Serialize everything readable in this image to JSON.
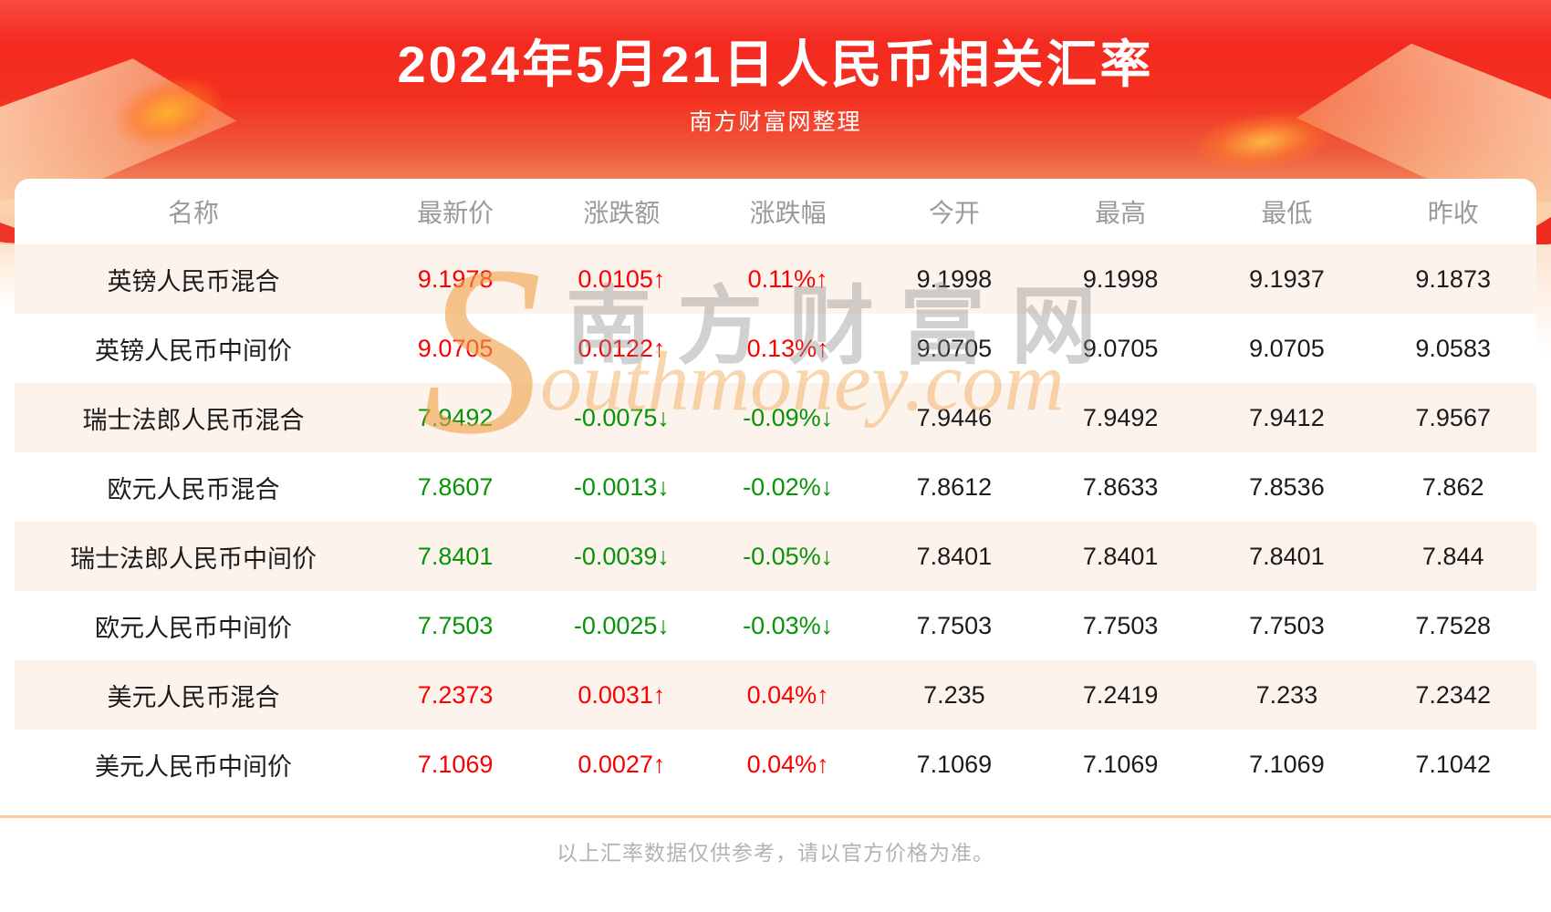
{
  "page": {
    "title": "2024年5月21日人民币相关汇率",
    "subtitle": "南方财富网整理",
    "disclaimer": "以上汇率数据仅供参考，请以官方价格为准。"
  },
  "watermark": {
    "initial": "S",
    "cn": "南方财富网",
    "rest": "outhmoney.com"
  },
  "colors": {
    "up": "#fa0000",
    "down": "#079407",
    "banner_red": "#f4291f",
    "banner_fade": "#f9d2a2",
    "alt_row_bg": "#fdf3ed",
    "divider": "#f8cd9b",
    "header_text": "#9a9a9a",
    "value_text": "#1b1b1b"
  },
  "chart_data": {
    "type": "table",
    "title": "2024年5月21日人民币相关汇率",
    "columns": [
      "名称",
      "最新价",
      "涨跌额",
      "涨跌幅",
      "今开",
      "最高",
      "最低",
      "昨收"
    ],
    "rows": [
      {
        "name": "英镑人民币混合",
        "latest": "9.1978",
        "change": "0.0105↑",
        "change_pct": "0.11%↑",
        "open": "9.1998",
        "high": "9.1998",
        "low": "9.1937",
        "prev_close": "9.1873",
        "direction": "up"
      },
      {
        "name": "英镑人民币中间价",
        "latest": "9.0705",
        "change": "0.0122↑",
        "change_pct": "0.13%↑",
        "open": "9.0705",
        "high": "9.0705",
        "low": "9.0705",
        "prev_close": "9.0583",
        "direction": "up"
      },
      {
        "name": "瑞士法郎人民币混合",
        "latest": "7.9492",
        "change": "-0.0075↓",
        "change_pct": "-0.09%↓",
        "open": "7.9446",
        "high": "7.9492",
        "low": "7.9412",
        "prev_close": "7.9567",
        "direction": "down"
      },
      {
        "name": "欧元人民币混合",
        "latest": "7.8607",
        "change": "-0.0013↓",
        "change_pct": "-0.02%↓",
        "open": "7.8612",
        "high": "7.8633",
        "low": "7.8536",
        "prev_close": "7.862",
        "direction": "down"
      },
      {
        "name": "瑞士法郎人民币中间价",
        "latest": "7.8401",
        "change": "-0.0039↓",
        "change_pct": "-0.05%↓",
        "open": "7.8401",
        "high": "7.8401",
        "low": "7.8401",
        "prev_close": "7.844",
        "direction": "down"
      },
      {
        "name": "欧元人民币中间价",
        "latest": "7.7503",
        "change": "-0.0025↓",
        "change_pct": "-0.03%↓",
        "open": "7.7503",
        "high": "7.7503",
        "low": "7.7503",
        "prev_close": "7.7528",
        "direction": "down"
      },
      {
        "name": "美元人民币混合",
        "latest": "7.2373",
        "change": "0.0031↑",
        "change_pct": "0.04%↑",
        "open": "7.235",
        "high": "7.2419",
        "low": "7.233",
        "prev_close": "7.2342",
        "direction": "up"
      },
      {
        "name": "美元人民币中间价",
        "latest": "7.1069",
        "change": "0.0027↑",
        "change_pct": "0.04%↑",
        "open": "7.1069",
        "high": "7.1069",
        "low": "7.1069",
        "prev_close": "7.1042",
        "direction": "up"
      }
    ]
  }
}
